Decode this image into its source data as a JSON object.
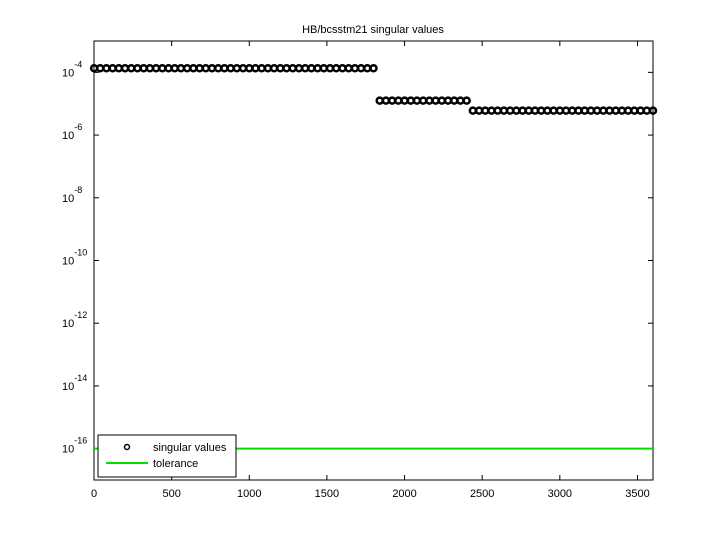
{
  "chart_data": {
    "type": "scatter",
    "title": "HB/bcsstm21 singular values",
    "y_scale": "log",
    "legend_position": "lower left",
    "xlim": [
      0,
      3600
    ],
    "xticks": [
      0,
      500,
      1000,
      1500,
      2000,
      2500,
      3000,
      3500
    ],
    "ylim": [
      1e-17,
      0.001
    ],
    "yticks": [
      {
        "value": 1e-16,
        "label": "10",
        "exponent": "-16"
      },
      {
        "value": 1e-14,
        "label": "10",
        "exponent": "-14"
      },
      {
        "value": 1e-12,
        "label": "10",
        "exponent": "-12"
      },
      {
        "value": 1e-10,
        "label": "10",
        "exponent": "-10"
      },
      {
        "value": 1e-08,
        "label": "10",
        "exponent": "-8"
      },
      {
        "value": 1e-06,
        "label": "10",
        "exponent": "-6"
      },
      {
        "value": 0.0001,
        "label": "10",
        "exponent": "-4"
      }
    ],
    "series": [
      {
        "name": "singular values",
        "color": "#000000",
        "style": "markers",
        "x": [
          1,
          40,
          80,
          120,
          160,
          200,
          240,
          280,
          320,
          360,
          400,
          440,
          480,
          520,
          560,
          600,
          640,
          680,
          720,
          760,
          800,
          840,
          880,
          920,
          960,
          1000,
          1040,
          1080,
          1120,
          1160,
          1200,
          1240,
          1280,
          1320,
          1360,
          1400,
          1440,
          1480,
          1520,
          1560,
          1600,
          1640,
          1680,
          1720,
          1760,
          1800,
          1840,
          1880,
          1920,
          1960,
          2000,
          2040,
          2080,
          2120,
          2160,
          2200,
          2240,
          2280,
          2320,
          2360,
          2400,
          2440,
          2480,
          2520,
          2560,
          2600,
          2640,
          2680,
          2720,
          2760,
          2800,
          2840,
          2880,
          2920,
          2960,
          3000,
          3040,
          3080,
          3120,
          3160,
          3200,
          3240,
          3280,
          3320,
          3360,
          3400,
          3440,
          3480,
          3520,
          3560,
          3600
        ],
        "values": [
          0.000135,
          0.000135,
          0.000135,
          0.000135,
          0.000135,
          0.000135,
          0.000135,
          0.000135,
          0.000135,
          0.000135,
          0.000135,
          0.000135,
          0.000135,
          0.000135,
          0.000135,
          0.000135,
          0.000135,
          0.000135,
          0.000135,
          0.000135,
          0.000135,
          0.000135,
          0.000135,
          0.000135,
          0.000135,
          0.000135,
          0.000135,
          0.000135,
          0.000135,
          0.000135,
          0.000135,
          0.000135,
          0.000135,
          0.000135,
          0.000135,
          0.000135,
          0.000135,
          0.000135,
          0.000135,
          0.000135,
          0.000135,
          0.000135,
          0.000135,
          0.000135,
          0.000135,
          0.000135,
          1.25e-05,
          1.25e-05,
          1.25e-05,
          1.25e-05,
          1.25e-05,
          1.25e-05,
          1.25e-05,
          1.25e-05,
          1.25e-05,
          1.25e-05,
          1.25e-05,
          1.25e-05,
          1.25e-05,
          1.25e-05,
          1.25e-05,
          6e-06,
          6e-06,
          6e-06,
          6e-06,
          6e-06,
          6e-06,
          6e-06,
          6e-06,
          6e-06,
          6e-06,
          6e-06,
          6e-06,
          6e-06,
          6e-06,
          6e-06,
          6e-06,
          6e-06,
          6e-06,
          6e-06,
          6e-06,
          6e-06,
          6e-06,
          6e-06,
          6e-06,
          6e-06,
          6e-06,
          6e-06,
          6e-06,
          6e-06,
          6e-06
        ]
      },
      {
        "name": "tolerance",
        "color": "#00dd00",
        "style": "line",
        "x": [
          0,
          3600
        ],
        "values": [
          1e-16,
          1e-16
        ]
      }
    ]
  }
}
